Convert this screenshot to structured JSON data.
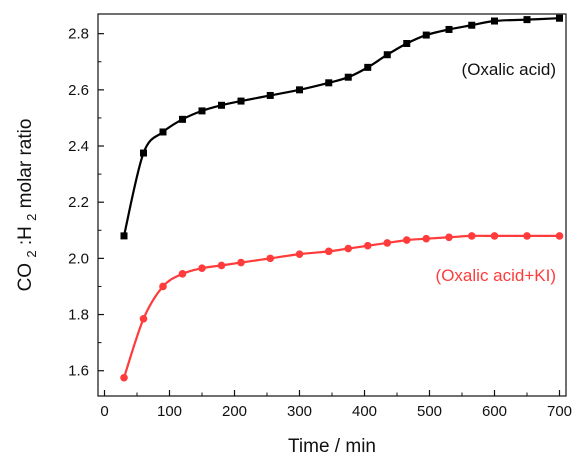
{
  "chart_data": {
    "type": "line",
    "title": "",
    "xlabel": "Time / min",
    "ylabel_parts": [
      "CO",
      "2",
      ":H",
      "2",
      " molar ratio"
    ],
    "xlim": [
      -10,
      710
    ],
    "ylim": [
      1.51,
      2.87
    ],
    "xticks": [
      0,
      100,
      200,
      300,
      400,
      500,
      600,
      700
    ],
    "yticks": [
      1.6,
      1.8,
      2.0,
      2.2,
      2.4,
      2.6,
      2.8
    ],
    "ytick_labels": [
      "1.6",
      "1.8",
      "2.0",
      "2.2",
      "2.4",
      "2.6",
      "2.8"
    ],
    "grid": false,
    "series": [
      {
        "name": "(Oxalic acid)",
        "color": "#000000",
        "marker": "square",
        "x": [
          30,
          60,
          90,
          120,
          150,
          180,
          210,
          255,
          300,
          345,
          375,
          405,
          435,
          465,
          495,
          530,
          565,
          600,
          650,
          700
        ],
        "y": [
          2.08,
          2.375,
          2.45,
          2.495,
          2.525,
          2.545,
          2.56,
          2.58,
          2.6,
          2.625,
          2.645,
          2.68,
          2.725,
          2.765,
          2.795,
          2.815,
          2.83,
          2.845,
          2.85,
          2.855
        ]
      },
      {
        "name": "(Oxalic acid+KI)",
        "color": "#ff3b3b",
        "marker": "circle",
        "x": [
          30,
          60,
          90,
          120,
          150,
          180,
          210,
          255,
          300,
          345,
          375,
          405,
          435,
          465,
          495,
          530,
          565,
          600,
          650,
          700
        ],
        "y": [
          1.575,
          1.785,
          1.9,
          1.945,
          1.965,
          1.975,
          1.985,
          2.0,
          2.015,
          2.025,
          2.035,
          2.045,
          2.055,
          2.065,
          2.07,
          2.075,
          2.08,
          2.08,
          2.08,
          2.08
        ]
      }
    ]
  }
}
